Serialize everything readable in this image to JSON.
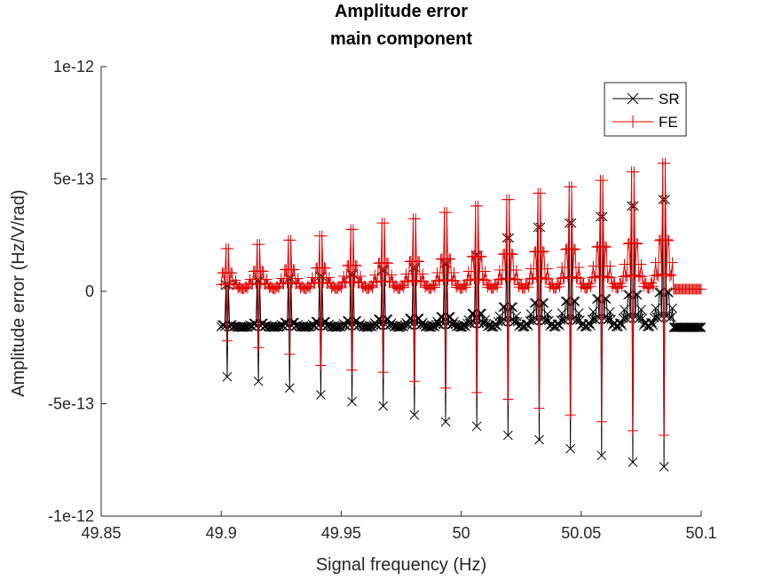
{
  "chart_data": {
    "type": "line",
    "title": [
      "Amplitude error",
      "main component"
    ],
    "xlabel": "Signal frequency (Hz)",
    "ylabel": "Amplitude error (Hz/V/rad)",
    "xlim": [
      49.85,
      50.1
    ],
    "ylim": [
      -1e-12,
      1e-12
    ],
    "x_ticks": [
      49.85,
      49.9,
      49.95,
      50,
      50.05,
      50.1
    ],
    "x_tick_labels": [
      "49.85",
      "49.9",
      "49.95",
      "50",
      "50.05",
      "50.1"
    ],
    "y_ticks": [
      1e-12,
      5e-13,
      0,
      -5e-13,
      -1e-12
    ],
    "y_tick_labels": [
      "1e-12",
      "5e-13",
      "0",
      "-5e-13",
      "-1e-12"
    ],
    "grid": false,
    "legend_position": "top-right",
    "legend": [
      "SR",
      "FE"
    ],
    "series": [
      {
        "name": "SR",
        "color": "#000000",
        "marker": "x",
        "x_start": 49.9,
        "x_step": 0.0005,
        "x_end": 50.1,
        "period": 0.01299,
        "first_dip": 49.9025,
        "dips": [
          {
            "x": 49.9025,
            "min": -3.8e-13,
            "max": 3e-14
          },
          {
            "x": 49.9155,
            "min": -4e-13,
            "max": 5e-14
          },
          {
            "x": 49.9285,
            "min": -4.3e-13,
            "max": 6e-14
          },
          {
            "x": 49.9415,
            "min": -4.6e-13,
            "max": 7e-14
          },
          {
            "x": 49.9545,
            "min": -4.9e-13,
            "max": 8e-14
          },
          {
            "x": 49.9675,
            "min": -5.1e-13,
            "max": 1e-13
          },
          {
            "x": 49.9805,
            "min": -5.5e-13,
            "max": 1.1e-13
          },
          {
            "x": 49.9935,
            "min": -5.8e-13,
            "max": 1.3e-13
          },
          {
            "x": 50.0065,
            "min": -6e-13,
            "max": 1.7e-13
          },
          {
            "x": 50.0195,
            "min": -6.4e-13,
            "max": 2.5e-13
          },
          {
            "x": 50.0325,
            "min": -6.6e-13,
            "max": 3e-13
          },
          {
            "x": 50.0455,
            "min": -7e-13,
            "max": 3.2e-13
          },
          {
            "x": 50.0585,
            "min": -7.3e-13,
            "max": 3.5e-13
          },
          {
            "x": 50.0715,
            "min": -7.6e-13,
            "max": 4e-13
          },
          {
            "x": 50.0845,
            "min": -7.8e-13,
            "max": 4.3e-13
          }
        ],
        "baseline": -1.6e-13
      },
      {
        "name": "FE",
        "color": "#e00000",
        "marker": "+",
        "x_start": 49.9,
        "x_step": 0.0005,
        "x_end": 50.1,
        "period": 0.01299,
        "first_dip": 49.9025,
        "dips": [
          {
            "x": 49.9025,
            "min": -2.2e-13,
            "max": 2e-13
          },
          {
            "x": 49.9155,
            "min": -2.5e-13,
            "max": 2.2e-13
          },
          {
            "x": 49.9285,
            "min": -2.8e-13,
            "max": 2.4e-13
          },
          {
            "x": 49.9415,
            "min": -3.3e-13,
            "max": 2.6e-13
          },
          {
            "x": 49.9545,
            "min": -3.5e-13,
            "max": 2.9e-13
          },
          {
            "x": 49.9675,
            "min": -3.6e-13,
            "max": 3.2e-13
          },
          {
            "x": 49.9805,
            "min": -4e-13,
            "max": 3.4e-13
          },
          {
            "x": 49.9935,
            "min": -4.3e-13,
            "max": 3.7e-13
          },
          {
            "x": 50.0065,
            "min": -4.5e-13,
            "max": 4e-13
          },
          {
            "x": 50.0195,
            "min": -4.8e-13,
            "max": 4.3e-13
          },
          {
            "x": 50.0325,
            "min": -5.2e-13,
            "max": 4.6e-13
          },
          {
            "x": 50.0455,
            "min": -5.5e-13,
            "max": 4.9e-13
          },
          {
            "x": 50.0585,
            "min": -5.8e-13,
            "max": 5.2e-13
          },
          {
            "x": 50.0715,
            "min": -6.2e-13,
            "max": 5.6e-13
          },
          {
            "x": 50.0845,
            "min": -6.4e-13,
            "max": 6e-13
          }
        ],
        "baseline": 1e-14
      }
    ]
  }
}
